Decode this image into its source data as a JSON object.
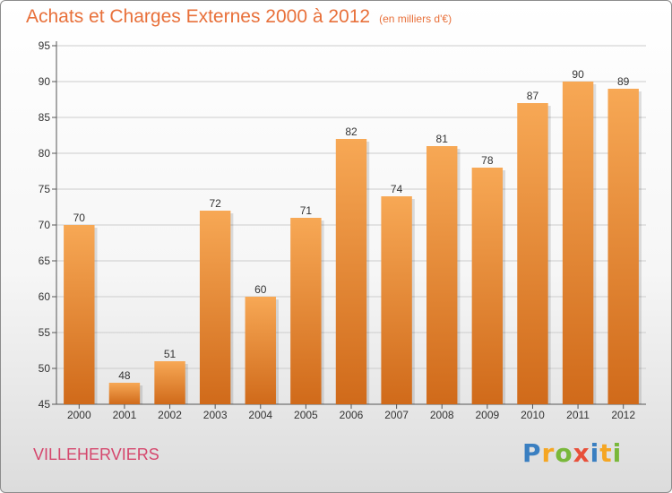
{
  "header": {
    "title": "Achats et Charges Externes 2000 à 2012",
    "subtitle": "(en milliers d'€)"
  },
  "footer": {
    "town": "VILLEHERVIERS",
    "logo_letters": [
      {
        "ch": "P",
        "color": "#3a7fc1"
      },
      {
        "ch": "r",
        "color": "#f5a623"
      },
      {
        "ch": "o",
        "color": "#79b83a"
      },
      {
        "ch": "x",
        "color": "#e8503a"
      },
      {
        "ch": "i",
        "color": "#3a7fc1"
      },
      {
        "ch": "t",
        "color": "#f5a623"
      },
      {
        "ch": "i",
        "color": "#79b83a"
      }
    ]
  },
  "colors": {
    "title": "#e8703a",
    "town": "#d5476d",
    "bar_top": "#f7a855",
    "bar_bottom": "#d06a1a",
    "grid": "#cccccc"
  },
  "chart_data": {
    "type": "bar",
    "title": "Achats et Charges Externes 2000 à 2012",
    "subtitle": "(en milliers d'€)",
    "categories": [
      "2000",
      "2001",
      "2002",
      "2003",
      "2004",
      "2005",
      "2006",
      "2007",
      "2008",
      "2009",
      "2010",
      "2011",
      "2012"
    ],
    "values": [
      70,
      48,
      51,
      72,
      60,
      71,
      82,
      74,
      81,
      78,
      87,
      90,
      89
    ],
    "ylim": [
      45,
      95
    ],
    "yticks": [
      45,
      50,
      55,
      60,
      65,
      70,
      75,
      80,
      85,
      90,
      95
    ],
    "grid": true,
    "data_labels": true
  }
}
